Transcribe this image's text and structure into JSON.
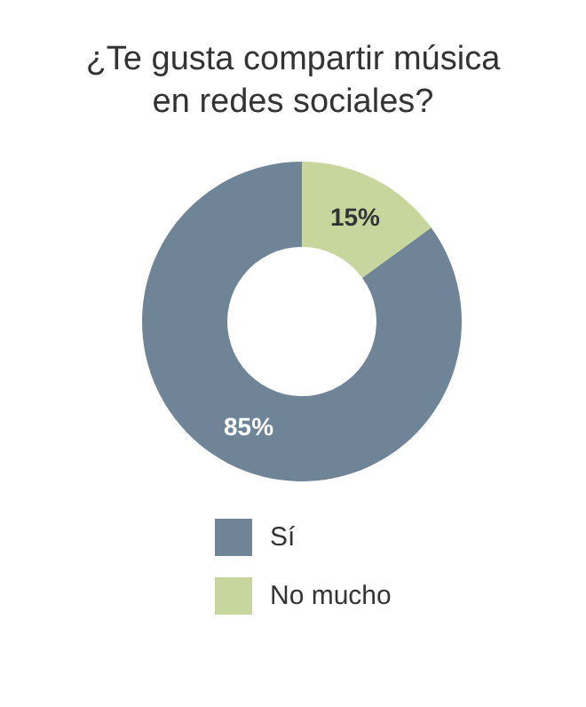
{
  "chart_data": {
    "type": "donut",
    "title": "¿Te gusta compartir música en redes sociales?",
    "categories": [
      "Sí",
      "No mucho"
    ],
    "values": [
      85,
      15
    ],
    "value_labels": [
      "85%",
      "15%"
    ],
    "colors": [
      "#6f8597",
      "#c6d69c"
    ],
    "legend": "bottom"
  }
}
